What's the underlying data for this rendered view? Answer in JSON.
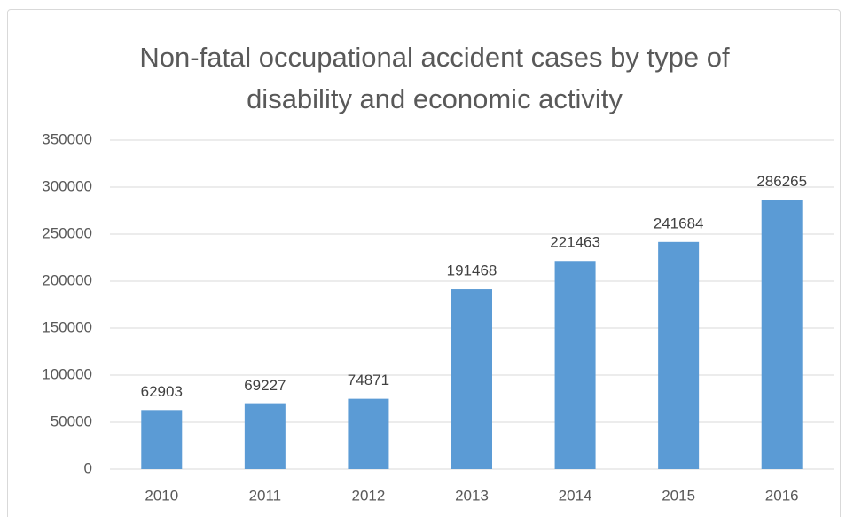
{
  "chart_data": {
    "type": "bar",
    "title": "Non-fatal occupational accident cases by type of disability and economic activity",
    "categories": [
      "2010",
      "2011",
      "2012",
      "2013",
      "2014",
      "2015",
      "2016"
    ],
    "values": [
      62903,
      69227,
      74871,
      191468,
      221463,
      241684,
      286265
    ],
    "color": "#5b9bd5",
    "ylim": [
      0,
      350000
    ],
    "yticks": [
      0,
      50000,
      100000,
      150000,
      200000,
      250000,
      300000,
      350000
    ],
    "grid": true
  }
}
